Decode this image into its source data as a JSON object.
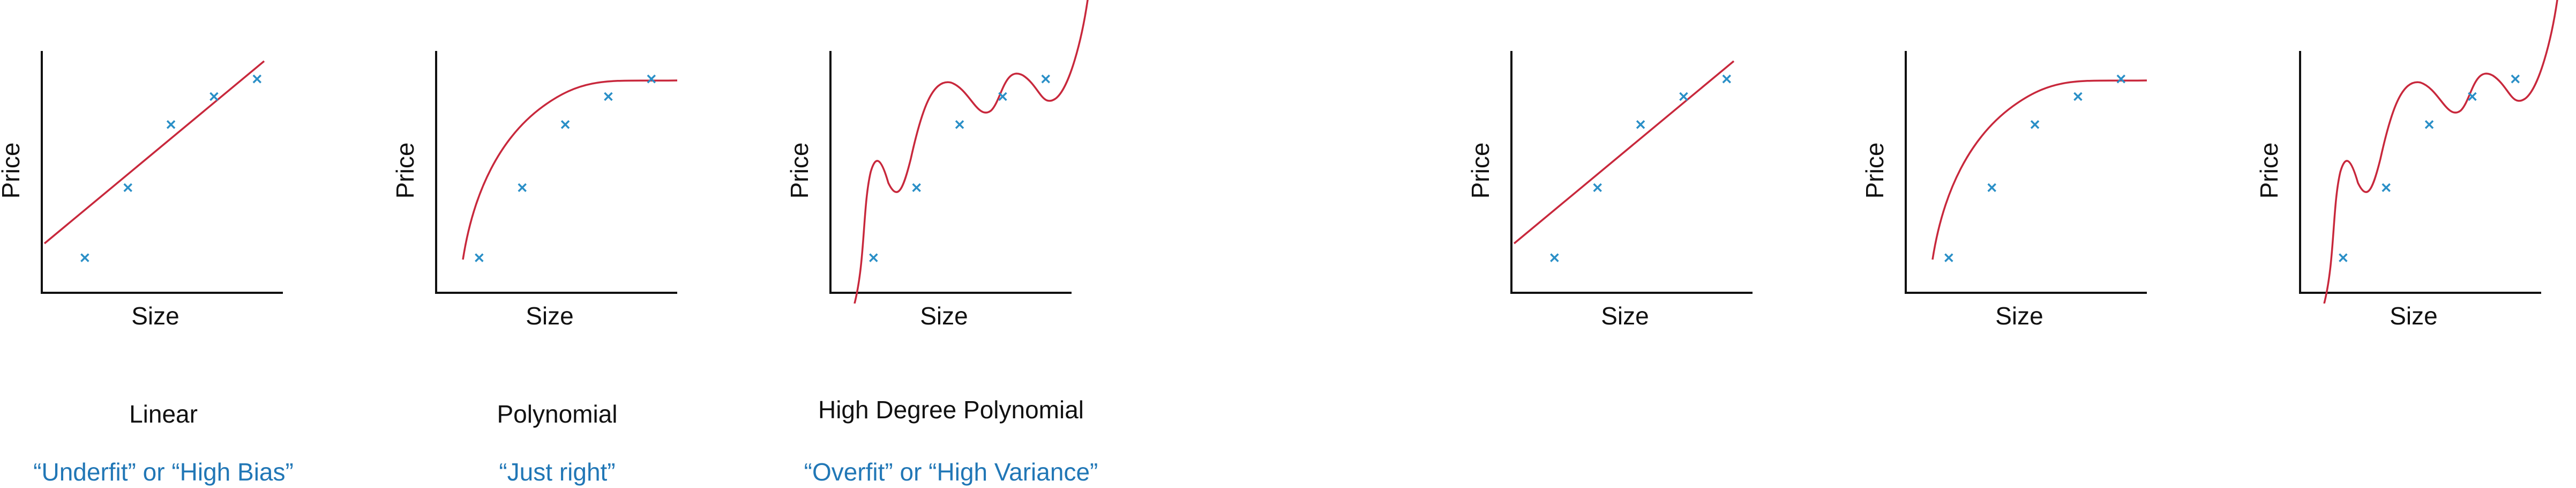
{
  "colors": {
    "axis": "#111111",
    "curve": "#c8283c",
    "point": "#2a8fc7",
    "caption": "#111111",
    "subcaption": "#2177b6"
  },
  "chart_data": [
    {
      "type": "scatter",
      "fit": "linear",
      "xlabel": "Size",
      "ylabel": "Price",
      "caption": "Linear",
      "subcaption": "“Underfit” or “High Bias”",
      "points": [
        [
          1,
          1
        ],
        [
          2,
          3
        ],
        [
          3,
          4.8
        ],
        [
          4,
          5.6
        ],
        [
          5,
          6.1
        ]
      ]
    },
    {
      "type": "scatter",
      "fit": "polynomial",
      "xlabel": "Size",
      "ylabel": "Price",
      "caption": "Polynomial",
      "subcaption": "“Just right”",
      "points": [
        [
          1,
          1
        ],
        [
          2,
          3
        ],
        [
          3,
          4.8
        ],
        [
          4,
          5.6
        ],
        [
          5,
          6.1
        ]
      ]
    },
    {
      "type": "scatter",
      "fit": "high-degree-polynomial",
      "xlabel": "Size",
      "ylabel": "Price",
      "caption": "High Degree Polynomial",
      "subcaption": "“Overfit” or “High Variance”",
      "points": [
        [
          1,
          1
        ],
        [
          2,
          3
        ],
        [
          3,
          4.8
        ],
        [
          4,
          5.6
        ],
        [
          5,
          6.1
        ]
      ]
    },
    {
      "type": "scatter",
      "fit": "linear",
      "xlabel": "Size",
      "ylabel": "Price",
      "caption": "",
      "subcaption": "",
      "points": [
        [
          1,
          1
        ],
        [
          2,
          3
        ],
        [
          3,
          4.8
        ],
        [
          4,
          5.6
        ],
        [
          5,
          6.1
        ]
      ]
    },
    {
      "type": "scatter",
      "fit": "polynomial",
      "xlabel": "Size",
      "ylabel": "Price",
      "caption": "",
      "subcaption": "",
      "points": [
        [
          1,
          1
        ],
        [
          2,
          3
        ],
        [
          3,
          4.8
        ],
        [
          4,
          5.6
        ],
        [
          5,
          6.1
        ]
      ]
    },
    {
      "type": "scatter",
      "fit": "high-degree-polynomial",
      "xlabel": "Size",
      "ylabel": "Price",
      "caption": "",
      "subcaption": "",
      "points": [
        [
          1,
          1
        ],
        [
          2,
          3
        ],
        [
          3,
          4.8
        ],
        [
          4,
          5.6
        ],
        [
          5,
          6.1
        ]
      ]
    }
  ]
}
